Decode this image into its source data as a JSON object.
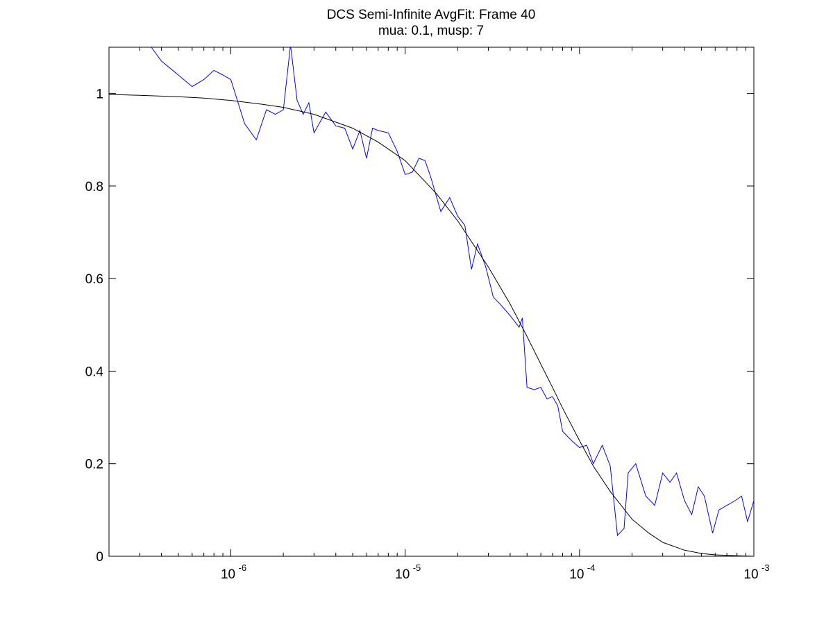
{
  "chart_data": {
    "type": "line",
    "title": "DCS Semi-Infinite AvgFit: Frame 40",
    "subtitle": "mua: 0.1, musp: 7",
    "xlabel": "",
    "ylabel": "",
    "xscale": "log",
    "xlim": [
      2e-07,
      0.001
    ],
    "ylim": [
      0,
      1.1
    ],
    "grid": false,
    "legend": "none",
    "x_ticks": [
      {
        "base": "10",
        "exp": "-6",
        "value": 1e-06
      },
      {
        "base": "10",
        "exp": "-5",
        "value": 1e-05
      },
      {
        "base": "10",
        "exp": "-4",
        "value": 0.0001
      },
      {
        "base": "10",
        "exp": "-3",
        "value": 0.001
      }
    ],
    "y_ticks": [
      {
        "label": "0",
        "value": 0
      },
      {
        "label": "0.2",
        "value": 0.2
      },
      {
        "label": "0.4",
        "value": 0.4
      },
      {
        "label": "0.6",
        "value": 0.6
      },
      {
        "label": "0.8",
        "value": 0.8
      },
      {
        "label": "1",
        "value": 1
      }
    ],
    "series": [
      {
        "color": "#0000ff",
        "style": "measured",
        "x": [
          3.5e-07,
          4e-07,
          5e-07,
          6e-07,
          7e-07,
          8e-07,
          9e-07,
          1e-06,
          1.2e-06,
          1.4e-06,
          1.6e-06,
          1.8e-06,
          2e-06,
          2.2e-06,
          2.4e-06,
          2.6e-06,
          2.8e-06,
          3e-06,
          3.5e-06,
          4e-06,
          4.5e-06,
          5e-06,
          5.5e-06,
          6e-06,
          6.5e-06,
          7e-06,
          8e-06,
          9e-06,
          1e-05,
          1.1e-05,
          1.2e-05,
          1.3e-05,
          1.4e-05,
          1.6e-05,
          1.8e-05,
          2e-05,
          2.2e-05,
          2.4e-05,
          2.6e-05,
          2.9e-05,
          3.2e-05,
          3.5e-05,
          4e-05,
          4.5e-05,
          4.7e-05,
          5e-05,
          5.5e-05,
          6e-05,
          6.5e-05,
          7e-05,
          7.5e-05,
          8e-05,
          9e-05,
          0.0001,
          0.00011,
          0.00012,
          0.000135,
          0.00015,
          0.000165,
          0.00018,
          0.00019,
          0.00021,
          0.00024,
          0.00027,
          0.0003,
          0.00033,
          0.00036,
          0.0004,
          0.00044,
          0.00048,
          0.00052,
          0.00058,
          0.00063,
          0.0007,
          0.00078,
          0.00085,
          0.00092,
          0.001
        ],
        "y": [
          1.1,
          1.07,
          1.04,
          1.015,
          1.03,
          1.05,
          1.04,
          1.03,
          0.935,
          0.9,
          0.965,
          0.955,
          0.965,
          1.105,
          0.985,
          0.955,
          0.98,
          0.915,
          0.96,
          0.93,
          0.925,
          0.88,
          0.92,
          0.86,
          0.925,
          0.92,
          0.915,
          0.875,
          0.825,
          0.83,
          0.86,
          0.855,
          0.82,
          0.745,
          0.775,
          0.735,
          0.715,
          0.62,
          0.675,
          0.625,
          0.56,
          0.545,
          0.52,
          0.495,
          0.515,
          0.365,
          0.36,
          0.365,
          0.34,
          0.345,
          0.325,
          0.27,
          0.25,
          0.235,
          0.24,
          0.2,
          0.24,
          0.195,
          0.045,
          0.06,
          0.18,
          0.2,
          0.13,
          0.11,
          0.18,
          0.16,
          0.18,
          0.12,
          0.09,
          0.15,
          0.13,
          0.05,
          0.1,
          0.11,
          0.12,
          0.13,
          0.075,
          0.12
        ]
      },
      {
        "color": "#000000",
        "style": "fit",
        "x": [
          2e-07,
          3e-07,
          5e-07,
          7e-07,
          1e-06,
          1.5e-06,
          2e-06,
          3e-06,
          5e-06,
          7e-06,
          1e-05,
          1.5e-05,
          2e-05,
          3e-05,
          4e-05,
          5e-05,
          6e-05,
          7e-05,
          8e-05,
          0.0001,
          0.00012,
          0.00015,
          0.0002,
          0.00025,
          0.0003,
          0.0004,
          0.0005,
          0.0006,
          0.0008,
          0.001
        ],
        "y": [
          0.998,
          0.996,
          0.993,
          0.99,
          0.985,
          0.977,
          0.97,
          0.955,
          0.925,
          0.895,
          0.855,
          0.785,
          0.725,
          0.625,
          0.545,
          0.475,
          0.415,
          0.365,
          0.32,
          0.25,
          0.195,
          0.14,
          0.08,
          0.05,
          0.03,
          0.013,
          0.006,
          0.003,
          0.001,
          0.0
        ]
      }
    ]
  }
}
